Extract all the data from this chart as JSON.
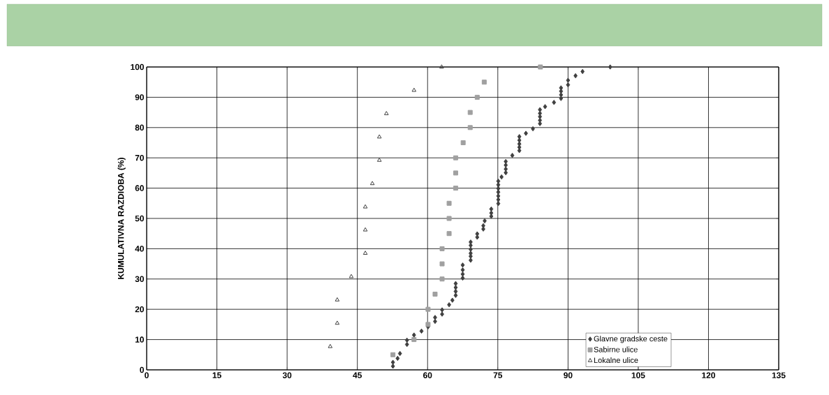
{
  "chart_data": {
    "type": "scatter",
    "ylabel": "KUMULATIVNA RAZDIOBA (%)",
    "xlim": [
      0,
      135
    ],
    "ylim": [
      0,
      100
    ],
    "xticks": [
      0,
      15,
      30,
      45,
      60,
      75,
      90,
      105,
      120,
      135
    ],
    "yticks": [
      0,
      10,
      20,
      30,
      40,
      50,
      60,
      70,
      80,
      90,
      100
    ],
    "grid": true,
    "legend": "bottom right",
    "series": [
      {
        "name": "Glavne gradske ceste",
        "color": "#404040",
        "marker": "diamond",
        "x": [
          52.6,
          52.6,
          53.6,
          54.1,
          55.6,
          55.6,
          57.1,
          58.7,
          60.1,
          61.6,
          61.6,
          63.1,
          63.1,
          64.6,
          65.3,
          66.0,
          66.0,
          66.0,
          66.0,
          67.5,
          67.5,
          67.5,
          67.5,
          69.2,
          69.2,
          69.2,
          69.2,
          69.2,
          69.2,
          70.6,
          70.6,
          71.9,
          71.9,
          72.2,
          73.6,
          73.6,
          73.6,
          75.1,
          75.1,
          75.1,
          75.1,
          75.1,
          75.1,
          75.1,
          75.8,
          76.7,
          76.7,
          76.7,
          76.7,
          78.1,
          79.6,
          79.6,
          79.6,
          79.6,
          79.6,
          81.0,
          82.5,
          84.0,
          84.0,
          84.0,
          84.0,
          84.0,
          85.1,
          87.0,
          88.5,
          88.5,
          88.5,
          88.5,
          90.0,
          90.0,
          91.6,
          93.1,
          99.0
        ],
        "values": [
          1.2,
          2.5,
          3.8,
          5.4,
          8.4,
          9.8,
          11.5,
          12.8,
          14.2,
          16.0,
          17.3,
          18.4,
          19.8,
          21.5,
          23.0,
          24.6,
          25.9,
          27.2,
          28.5,
          30.3,
          31.6,
          33.0,
          34.6,
          36.2,
          37.5,
          38.5,
          39.8,
          41.1,
          42.2,
          43.8,
          44.9,
          46.5,
          47.6,
          49.2,
          50.7,
          51.8,
          53.1,
          54.9,
          56.2,
          57.4,
          58.7,
          59.9,
          61.1,
          62.3,
          63.7,
          65.1,
          66.3,
          67.6,
          68.8,
          70.8,
          72.4,
          73.5,
          74.6,
          75.8,
          77.0,
          78.1,
          79.6,
          81.3,
          82.4,
          83.6,
          84.7,
          85.9,
          86.9,
          88.3,
          89.6,
          90.8,
          92.0,
          93.1,
          94.1,
          95.6,
          97.1,
          98.5,
          100
        ]
      },
      {
        "name": "Sabirne ulice",
        "color": "#a0a0a0",
        "marker": "square",
        "x": [
          52.6,
          57.1,
          60.1,
          60.1,
          61.6,
          63.1,
          63.1,
          63.1,
          64.6,
          64.6,
          64.6,
          66.0,
          66.0,
          66.0,
          67.6,
          69.1,
          69.1,
          70.6,
          72.1,
          84.1
        ],
        "values": [
          5,
          10,
          15,
          20,
          25,
          30,
          35,
          40,
          45,
          50,
          55,
          60,
          65,
          70,
          75,
          80,
          85,
          90,
          95,
          100
        ]
      },
      {
        "name": "Lokalne ulice",
        "color": "#404040",
        "marker": "triangle",
        "x": [
          39.2,
          40.7,
          40.7,
          43.7,
          46.7,
          46.7,
          46.7,
          48.2,
          49.7,
          49.7,
          51.2,
          57.1,
          63.0
        ],
        "values": [
          7.7,
          15.4,
          23.1,
          30.8,
          38.5,
          46.2,
          53.8,
          61.5,
          69.2,
          76.9,
          84.6,
          92.3,
          100
        ]
      }
    ]
  }
}
